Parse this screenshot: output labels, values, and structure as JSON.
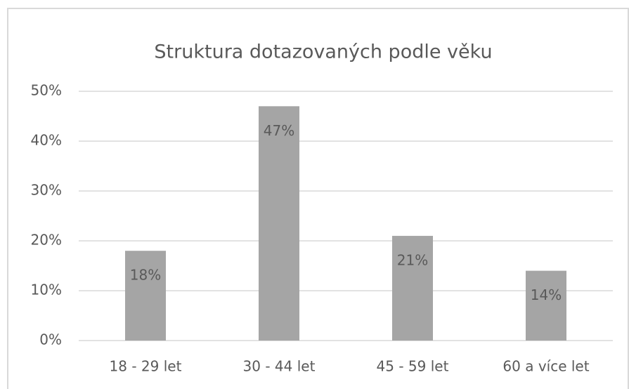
{
  "chart_data": {
    "type": "bar",
    "title": "Struktura dotazovaných podle věku",
    "categories": [
      "18 - 29 let",
      "30 - 44 let",
      "45 - 59 let",
      "60 a více let"
    ],
    "values": [
      18,
      47,
      21,
      14
    ],
    "value_labels": [
      "18%",
      "47%",
      "21%",
      "14%"
    ],
    "color": "#a5a5a5",
    "ylim": [
      0,
      50
    ],
    "yticks": [
      {
        "value": 0,
        "label": "0%"
      },
      {
        "value": 10,
        "label": "10%"
      },
      {
        "value": 20,
        "label": "20%"
      },
      {
        "value": 30,
        "label": "30%"
      },
      {
        "value": 40,
        "label": "40%"
      },
      {
        "value": 50,
        "label": "50%"
      }
    ],
    "grid": true
  }
}
